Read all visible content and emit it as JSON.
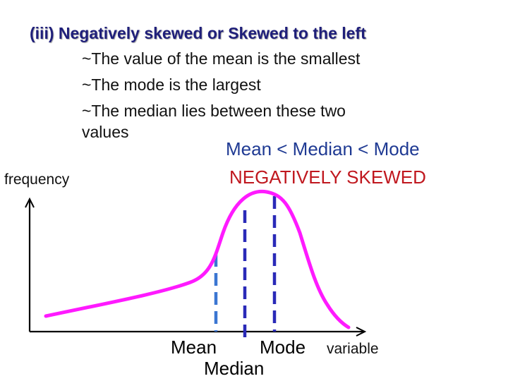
{
  "title": "(iii) Negatively skewed  or Skewed to the left",
  "bullets": [
    "~The value of the mean is the smallest",
    "~The mode is the largest",
    "~The median lies between these two",
    "values"
  ],
  "relation": "Mean < Median < Mode",
  "skew_label": "NEGATIVELY SKEWED",
  "y_axis_label": "frequency",
  "x_axis_label": "variable",
  "markers": {
    "mean": "Mean",
    "median": "Median",
    "mode": "Mode"
  },
  "colors": {
    "title": "#1f1f7a",
    "relation": "#1f3a93",
    "skew_label": "#c0181f",
    "curve": "#ff1aff",
    "mean_line": "#3b76d2",
    "median_mode_lines": "#2a2ab8",
    "axis": "#000000"
  }
}
